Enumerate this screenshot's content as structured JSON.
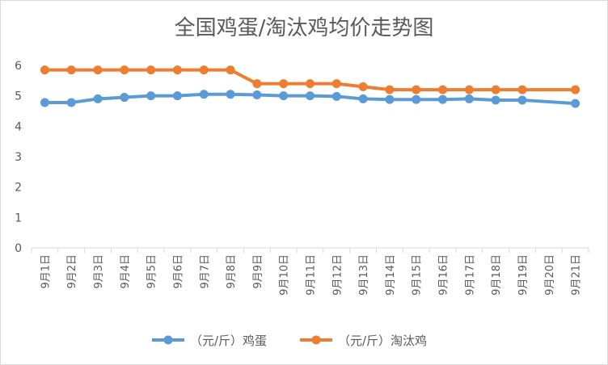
{
  "chart_data": {
    "type": "line",
    "title": "全国鸡蛋/淘汰鸡均价走势图",
    "xlabel": "",
    "ylabel": "",
    "ylim": [
      0,
      6
    ],
    "yticks": [
      0,
      1,
      2,
      3,
      4,
      5,
      6
    ],
    "grid": false,
    "legend_position": "bottom",
    "categories": [
      "9月1日",
      "9月2日",
      "9月3日",
      "9月4日",
      "9月5日",
      "9月6日",
      "9月7日",
      "9月8日",
      "9月9日",
      "9月10日",
      "9月11日",
      "9月12日",
      "9月13日",
      "9月14日",
      "9月15日",
      "9月16日",
      "9月17日",
      "9月18日",
      "9月19日",
      "9月20日",
      "9月21日"
    ],
    "series": [
      {
        "name": "（元/斤）鸡蛋",
        "color": "#5b9bd5",
        "values": [
          4.78,
          4.78,
          4.9,
          4.95,
          5.0,
          5.0,
          5.05,
          5.05,
          5.03,
          5.0,
          5.0,
          4.98,
          4.9,
          4.88,
          4.88,
          4.88,
          4.9,
          4.86,
          4.86,
          null,
          4.75
        ]
      },
      {
        "name": "（元/斤）淘汰鸡",
        "color": "#ed7d31",
        "values": [
          5.85,
          5.85,
          5.85,
          5.85,
          5.85,
          5.85,
          5.85,
          5.85,
          5.4,
          5.4,
          5.4,
          5.4,
          5.3,
          5.2,
          5.2,
          5.2,
          5.2,
          5.2,
          5.2,
          null,
          5.2
        ]
      }
    ]
  }
}
